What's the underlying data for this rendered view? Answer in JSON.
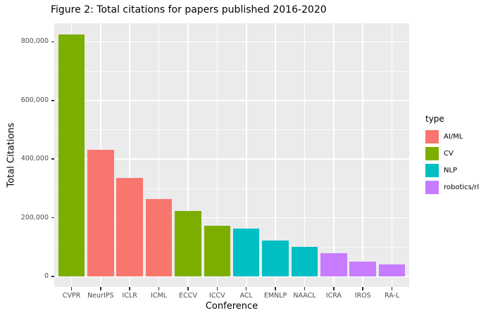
{
  "title": "Figure 2: Total citations for papers published 2016-2020",
  "chart_data": {
    "type": "bar",
    "title": "Figure 2: Total citations for papers published 2016-2020",
    "xlabel": "Conference",
    "ylabel": "Total Citations",
    "categories": [
      "CVPR",
      "NeurIPS",
      "ICLR",
      "ICML",
      "ECCV",
      "ICCV",
      "ACL",
      "EMNLP",
      "NAACL",
      "ICRA",
      "IROS",
      "RA-L"
    ],
    "values": [
      825000,
      431000,
      336000,
      264000,
      223000,
      172000,
      162000,
      122000,
      100000,
      80000,
      50000,
      42000
    ],
    "bar_types": [
      "CV",
      "AI/ML",
      "AI/ML",
      "AI/ML",
      "CV",
      "CV",
      "NLP",
      "NLP",
      "NLP",
      "robotics/rl",
      "robotics/rl",
      "robotics/rl"
    ],
    "ylim": [
      0,
      865000
    ],
    "ytick_values": [
      0,
      200000,
      400000,
      600000,
      800000
    ],
    "ytick_labels": [
      "0",
      "200,000",
      "400,000",
      "600,000",
      "800,000"
    ],
    "ytick_minor_values": [
      100000,
      300000,
      500000,
      700000
    ],
    "grid": "major-and-minor",
    "legend": {
      "title": "type",
      "position": "right",
      "entries": [
        {
          "label": "AI/ML",
          "color": "#F8766D"
        },
        {
          "label": "CV",
          "color": "#7CAE00"
        },
        {
          "label": "NLP",
          "color": "#00BFC4"
        },
        {
          "label": "robotics/rl",
          "color": "#C77CFF"
        }
      ]
    },
    "colors": {
      "AI/ML": "#F8766D",
      "CV": "#7CAE00",
      "NLP": "#00BFC4",
      "robotics/rl": "#C77CFF"
    },
    "theme": {
      "panel_bg": "#EBEBEB",
      "grid_color": "#FFFFFF",
      "tick_text_color": "#4D4D4D",
      "tick_mark_color": "#333333",
      "text_color": "#000000",
      "background": "#FFFFFF"
    }
  }
}
